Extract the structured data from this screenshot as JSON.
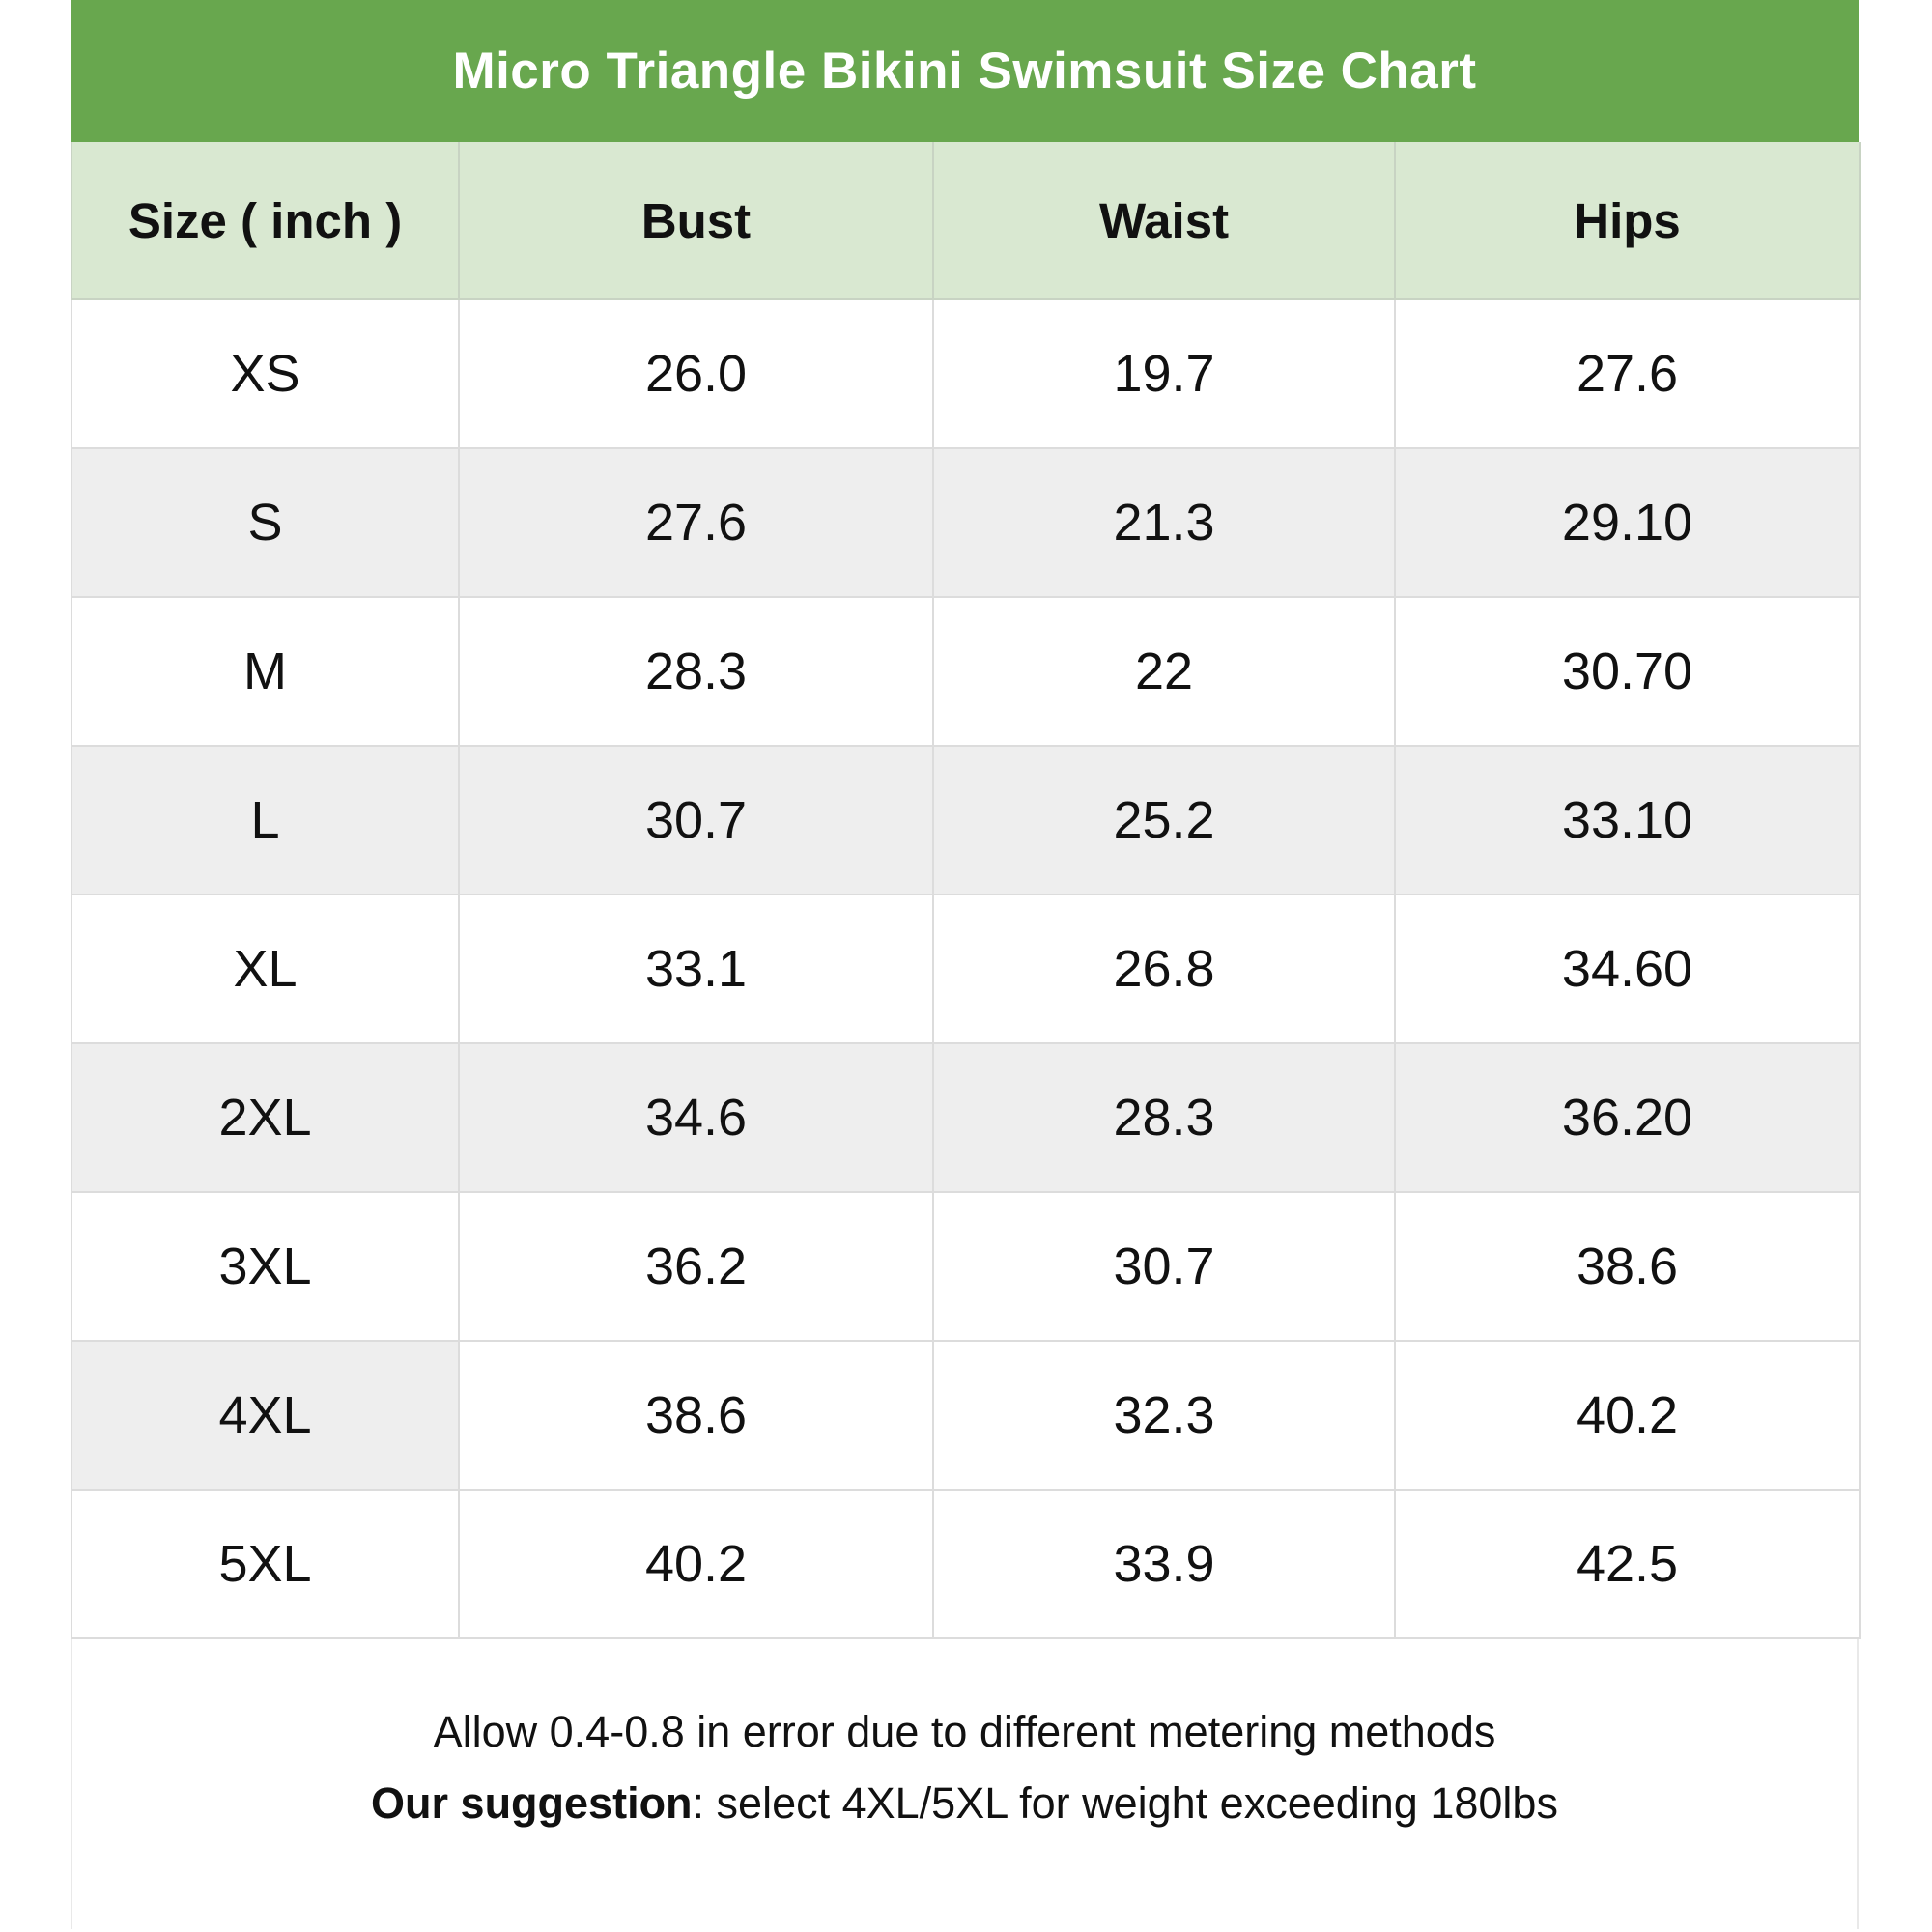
{
  "title": "Micro Triangle Bikini Swimsuit Size Chart",
  "chart_data": {
    "type": "table",
    "title": "Micro Triangle Bikini Swimsuit Size Chart",
    "columns": [
      "Size ( inch )",
      "Bust",
      "Waist",
      "Hips"
    ],
    "rows": [
      [
        "XS",
        "26.0",
        "19.7",
        "27.6"
      ],
      [
        "S",
        "27.6",
        "21.3",
        "29.10"
      ],
      [
        "M",
        "28.3",
        "22",
        "30.70"
      ],
      [
        "L",
        "30.7",
        "25.2",
        "33.10"
      ],
      [
        "XL",
        "33.1",
        "26.8",
        "34.60"
      ],
      [
        "2XL",
        "34.6",
        "28.3",
        "36.20"
      ],
      [
        "3XL",
        "36.2",
        "30.7",
        "38.6"
      ],
      [
        "4XL",
        "38.6",
        "32.3",
        "40.2"
      ],
      [
        "5XL",
        "40.2",
        "33.9",
        "42.5"
      ]
    ],
    "units": "inch",
    "notes": [
      "Allow 0.4-0.8 in error due to different metering methods",
      "Our suggestion: select 4XL/5XL for weight exceeding 180lbs"
    ]
  },
  "footer": {
    "line1": "Allow 0.4-0.8 in error due to different metering methods",
    "suggestion_label": "Our suggestion",
    "suggestion_text": ": select 4XL/5XL for weight exceeding 180lbs"
  },
  "colors": {
    "title_bar": "#68a74e",
    "header_row": "#d9e8d1",
    "stripe": "#eeeeee",
    "title_text": "#ffffff",
    "text": "#111111"
  }
}
